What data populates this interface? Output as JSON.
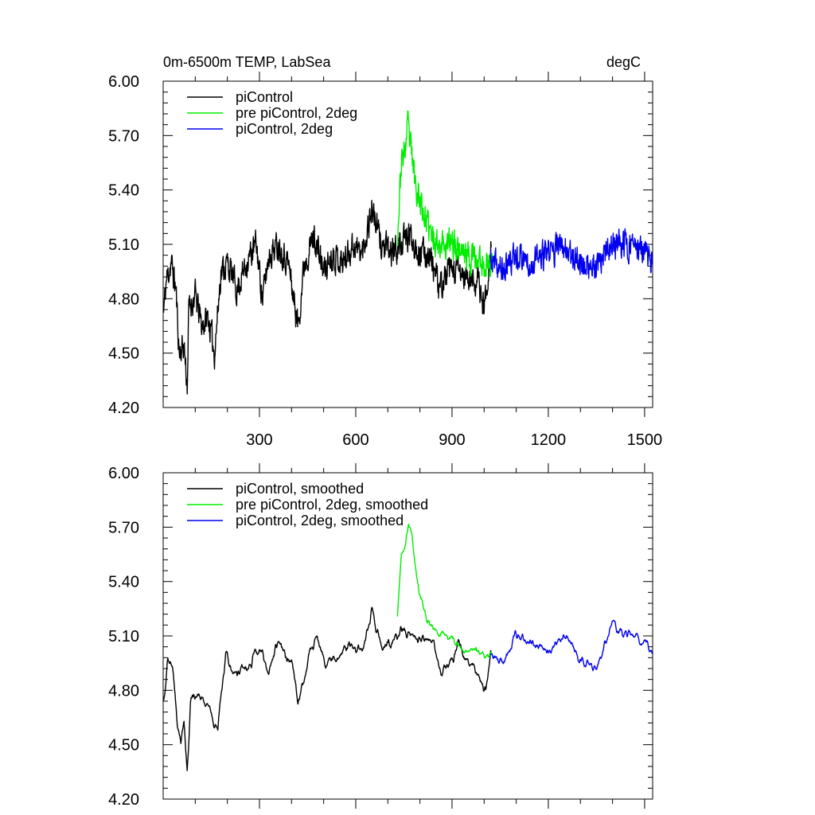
{
  "chart_data": [
    {
      "type": "line",
      "title": "0m-6500m TEMP, LabSea",
      "units": "degC",
      "xlim": [
        0,
        1525
      ],
      "ylim": [
        4.2,
        6.0
      ],
      "xticks": [
        300,
        600,
        900,
        1200,
        1500
      ],
      "xtick_labels": [
        "300",
        "600",
        "900",
        "1200",
        "1500"
      ],
      "yticks": [
        4.2,
        4.5,
        4.8,
        5.1,
        5.4,
        5.7,
        6.0
      ],
      "ytick_labels": [
        "4.20",
        "4.50",
        "4.80",
        "5.10",
        "5.40",
        "5.70",
        "6.00"
      ],
      "legend_position": "top-left",
      "series": [
        {
          "name": "piControl",
          "color": "#000000",
          "x_start": 1,
          "x_end": 1022,
          "anchors": [
            [
              1,
              4.72
            ],
            [
              10,
              4.9
            ],
            [
              25,
              5.0
            ],
            [
              40,
              4.85
            ],
            [
              50,
              4.5
            ],
            [
              65,
              4.55
            ],
            [
              75,
              4.32
            ],
            [
              80,
              4.75
            ],
            [
              100,
              4.82
            ],
            [
              120,
              4.65
            ],
            [
              140,
              4.7
            ],
            [
              160,
              4.5
            ],
            [
              180,
              4.95
            ],
            [
              200,
              5.0
            ],
            [
              230,
              4.85
            ],
            [
              260,
              5.0
            ],
            [
              290,
              5.1
            ],
            [
              310,
              4.8
            ],
            [
              330,
              5.05
            ],
            [
              360,
              5.1
            ],
            [
              390,
              5.0
            ],
            [
              420,
              4.65
            ],
            [
              440,
              5.0
            ],
            [
              470,
              5.15
            ],
            [
              500,
              4.95
            ],
            [
              530,
              5.05
            ],
            [
              560,
              5.0
            ],
            [
              590,
              5.1
            ],
            [
              620,
              5.05
            ],
            [
              650,
              5.3
            ],
            [
              680,
              5.1
            ],
            [
              710,
              5.05
            ],
            [
              740,
              5.1
            ],
            [
              770,
              5.15
            ],
            [
              800,
              5.05
            ],
            [
              830,
              5.05
            ],
            [
              860,
              4.85
            ],
            [
              890,
              4.95
            ],
            [
              920,
              4.95
            ],
            [
              950,
              4.9
            ],
            [
              980,
              4.9
            ],
            [
              1000,
              4.75
            ],
            [
              1022,
              5.1
            ]
          ]
        },
        {
          "name": "pre piControl, 2deg",
          "color": "#00ee00",
          "x_start": 730,
          "x_end": 1025,
          "anchors": [
            [
              730,
              5.15
            ],
            [
              742,
              5.55
            ],
            [
              752,
              5.6
            ],
            [
              762,
              5.75
            ],
            [
              772,
              5.62
            ],
            [
              785,
              5.45
            ],
            [
              800,
              5.35
            ],
            [
              815,
              5.25
            ],
            [
              835,
              5.15
            ],
            [
              855,
              5.12
            ],
            [
              880,
              5.1
            ],
            [
              910,
              5.1
            ],
            [
              940,
              5.05
            ],
            [
              970,
              5.02
            ],
            [
              1000,
              5.0
            ],
            [
              1025,
              5.0
            ]
          ]
        },
        {
          "name": "piControl, 2deg",
          "color": "#0000ee",
          "x_start": 1020,
          "x_end": 1525,
          "anchors": [
            [
              1020,
              5.0
            ],
            [
              1060,
              4.95
            ],
            [
              1100,
              5.05
            ],
            [
              1150,
              5.0
            ],
            [
              1200,
              5.05
            ],
            [
              1250,
              5.1
            ],
            [
              1300,
              5.0
            ],
            [
              1350,
              4.95
            ],
            [
              1400,
              5.1
            ],
            [
              1450,
              5.1
            ],
            [
              1500,
              5.05
            ],
            [
              1525,
              5.0
            ]
          ]
        }
      ]
    },
    {
      "type": "line",
      "xlim": [
        0,
        1525
      ],
      "ylim": [
        4.2,
        6.0
      ],
      "xticks": [
        300,
        600,
        900,
        1200,
        1500
      ],
      "yticks": [
        4.2,
        4.5,
        4.8,
        5.1,
        5.4,
        5.7,
        6.0
      ],
      "ytick_labels": [
        "4.20",
        "4.50",
        "4.80",
        "5.10",
        "5.40",
        "5.70",
        "6.00"
      ],
      "legend_position": "top-left",
      "series": [
        {
          "name": "piControl, smoothed",
          "color": "#000000",
          "x_start": 1,
          "x_end": 1022,
          "anchors": [
            [
              1,
              4.75
            ],
            [
              15,
              4.98
            ],
            [
              30,
              4.92
            ],
            [
              45,
              4.6
            ],
            [
              55,
              4.5
            ],
            [
              65,
              4.62
            ],
            [
              75,
              4.4
            ],
            [
              85,
              4.75
            ],
            [
              110,
              4.78
            ],
            [
              140,
              4.7
            ],
            [
              170,
              4.6
            ],
            [
              195,
              5.0
            ],
            [
              230,
              4.9
            ],
            [
              260,
              4.95
            ],
            [
              300,
              5.05
            ],
            [
              330,
              4.9
            ],
            [
              360,
              5.05
            ],
            [
              400,
              4.95
            ],
            [
              420,
              4.72
            ],
            [
              450,
              4.95
            ],
            [
              480,
              5.1
            ],
            [
              510,
              4.95
            ],
            [
              540,
              5.0
            ],
            [
              580,
              5.05
            ],
            [
              620,
              5.0
            ],
            [
              650,
              5.25
            ],
            [
              680,
              5.05
            ],
            [
              710,
              5.05
            ],
            [
              740,
              5.1
            ],
            [
              770,
              5.12
            ],
            [
              800,
              5.05
            ],
            [
              830,
              5.1
            ],
            [
              860,
              4.95
            ],
            [
              890,
              4.92
            ],
            [
              920,
              5.05
            ],
            [
              950,
              4.95
            ],
            [
              980,
              4.9
            ],
            [
              1005,
              4.8
            ],
            [
              1022,
              5.0
            ]
          ]
        },
        {
          "name": "pre piControl, 2deg, smoothed",
          "color": "#00ee00",
          "x_start": 730,
          "x_end": 1025,
          "anchors": [
            [
              730,
              5.2
            ],
            [
              742,
              5.55
            ],
            [
              752,
              5.6
            ],
            [
              765,
              5.72
            ],
            [
              778,
              5.6
            ],
            [
              790,
              5.4
            ],
            [
              805,
              5.3
            ],
            [
              820,
              5.2
            ],
            [
              840,
              5.15
            ],
            [
              860,
              5.12
            ],
            [
              880,
              5.12
            ],
            [
              905,
              5.08
            ],
            [
              930,
              5.0
            ],
            [
              960,
              5.05
            ],
            [
              990,
              5.0
            ],
            [
              1025,
              4.97
            ]
          ]
        },
        {
          "name": "piControl, 2deg, smoothed",
          "color": "#0000ee",
          "x_start": 1020,
          "x_end": 1525,
          "anchors": [
            [
              1020,
              5.0
            ],
            [
              1060,
              4.95
            ],
            [
              1100,
              5.1
            ],
            [
              1150,
              5.05
            ],
            [
              1200,
              5.02
            ],
            [
              1250,
              5.1
            ],
            [
              1300,
              4.98
            ],
            [
              1350,
              4.92
            ],
            [
              1400,
              5.15
            ],
            [
              1450,
              5.1
            ],
            [
              1500,
              5.05
            ],
            [
              1525,
              5.0
            ]
          ]
        }
      ]
    }
  ]
}
